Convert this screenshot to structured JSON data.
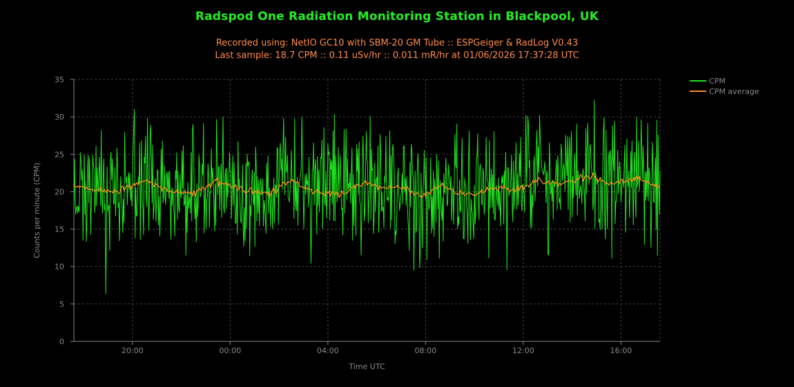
{
  "colors": {
    "background": "#000000",
    "title": "#22ee22",
    "subtitle": "#ff8c4a",
    "axis_text": "#8a8a8a",
    "grid": "#555555",
    "axis_line": "#888888",
    "cpm": "#1ee61e",
    "cpm_average": "#ff8c1a"
  },
  "header": {
    "title": "Radspod One Radiation Monitoring Station in Blackpool, UK",
    "subtitle_line1": "Recorded using: NetIO GC10 with SBM-20 GM Tube :: ESPGeiger & RadLog V0.43",
    "subtitle_line2": "Last sample: 18.7 CPM :: 0.11 uSv/hr :: 0.011 mR/hr at 01/06/2026 17:37:28 UTC"
  },
  "chart_data": {
    "type": "line",
    "xlabel": "Time UTC",
    "ylabel": "Counts per minute (CPM)",
    "xlim": [
      "17:38",
      "17:38"
    ],
    "x_range_hours": [
      -2.4,
      21.6
    ],
    "ylim": [
      0,
      35
    ],
    "yticks": [
      "0",
      "5",
      "10",
      "15",
      "20",
      "25",
      "30",
      "35"
    ],
    "xticks": [
      {
        "label": "20:00",
        "hour": 0
      },
      {
        "label": "00:00",
        "hour": 4
      },
      {
        "label": "04:00",
        "hour": 8
      },
      {
        "label": "08:00",
        "hour": 12
      },
      {
        "label": "12:00",
        "hour": 16
      },
      {
        "label": "16:00",
        "hour": 20
      }
    ],
    "grid": true,
    "grid_style": "dashed",
    "legend_position": "top-right-outside",
    "series": [
      {
        "name": "CPM",
        "color": "#1ee61e",
        "mean": 20.5,
        "approx_min": 6.4,
        "approx_max": 32.2,
        "notable_points": [
          {
            "time": "18:54",
            "value": 6.4
          },
          {
            "time": "20:05",
            "value": 31.0
          },
          {
            "time": "07:32",
            "value": 9.5
          },
          {
            "time": "14:55",
            "value": 32.2
          }
        ]
      },
      {
        "name": "CPM average",
        "color": "#ff8c1a",
        "profile": [
          {
            "time": "17:38",
            "value": 20.8
          },
          {
            "time": "18:20",
            "value": 20.3
          },
          {
            "time": "19:30",
            "value": 20.0
          },
          {
            "time": "20:30",
            "value": 21.6
          },
          {
            "time": "21:30",
            "value": 20.0
          },
          {
            "time": "22:30",
            "value": 19.8
          },
          {
            "time": "23:30",
            "value": 21.4
          },
          {
            "time": "00:30",
            "value": 20.3
          },
          {
            "time": "01:30",
            "value": 19.6
          },
          {
            "time": "02:30",
            "value": 21.5
          },
          {
            "time": "03:30",
            "value": 19.9
          },
          {
            "time": "04:30",
            "value": 19.6
          },
          {
            "time": "05:30",
            "value": 21.2
          },
          {
            "time": "06:10",
            "value": 20.5
          },
          {
            "time": "06:50",
            "value": 20.8
          },
          {
            "time": "07:50",
            "value": 19.4
          },
          {
            "time": "08:40",
            "value": 20.8
          },
          {
            "time": "09:40",
            "value": 19.4
          },
          {
            "time": "10:40",
            "value": 20.5
          },
          {
            "time": "11:40",
            "value": 20.3
          },
          {
            "time": "12:40",
            "value": 21.5
          },
          {
            "time": "13:40",
            "value": 21.0
          },
          {
            "time": "14:40",
            "value": 22.2
          },
          {
            "time": "15:30",
            "value": 21.0
          },
          {
            "time": "16:40",
            "value": 21.8
          },
          {
            "time": "17:38",
            "value": 20.6
          }
        ]
      }
    ]
  }
}
